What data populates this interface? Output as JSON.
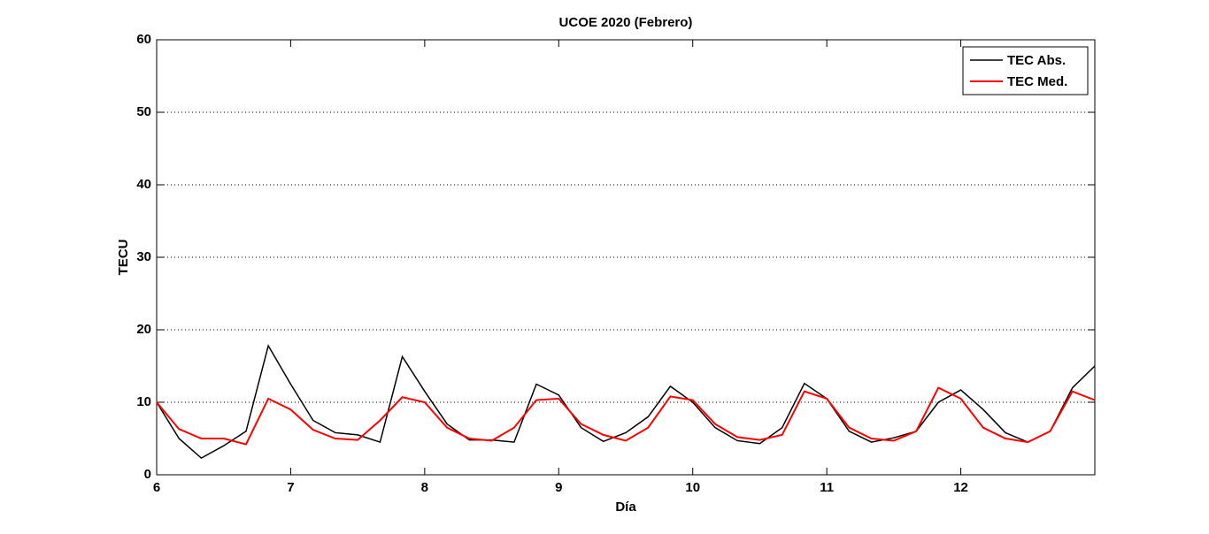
{
  "chart_data": {
    "type": "line",
    "title": "UCOE 2020 (Febrero)",
    "x_label": "Día",
    "y_label": "TECU",
    "x": [
      6,
      6.167,
      6.333,
      6.5,
      6.667,
      6.833,
      7,
      7.167,
      7.333,
      7.5,
      7.667,
      7.833,
      8,
      8.167,
      8.333,
      8.5,
      8.667,
      8.833,
      9,
      9.167,
      9.333,
      9.5,
      9.667,
      9.833,
      10,
      10.167,
      10.333,
      10.5,
      10.667,
      10.833,
      11,
      11.167,
      11.333,
      11.5,
      11.667,
      11.833,
      12,
      12.167,
      12.333,
      12.5,
      12.667,
      12.833,
      13
    ],
    "series": [
      {
        "name": "TEC Abs.",
        "color": "#000000",
        "values": [
          10,
          5,
          2.3,
          4,
          6,
          17.8,
          12.5,
          7.5,
          5.8,
          5.5,
          4.5,
          16.3,
          11.5,
          7,
          4.8,
          4.8,
          4.5,
          12.5,
          11,
          6.5,
          4.6,
          5.8,
          8,
          12.2,
          10,
          6.5,
          4.7,
          4.3,
          6.5,
          12.6,
          10.5,
          6,
          4.5,
          5.1,
          6,
          10,
          11.7,
          9,
          5.8,
          4.5,
          6,
          12,
          15
        ]
      },
      {
        "name": "TEC Med.",
        "color": "#ff0000",
        "values": [
          10,
          6.3,
          5,
          5,
          4.2,
          10.5,
          9,
          6.2,
          5,
          4.8,
          7.5,
          10.7,
          10,
          6.5,
          5,
          4.7,
          6.5,
          10.3,
          10.5,
          7,
          5.5,
          4.7,
          6.5,
          10.8,
          10.3,
          7,
          5.2,
          4.8,
          5.5,
          11.5,
          10.5,
          6.5,
          5,
          4.7,
          6,
          12,
          10.5,
          6.5,
          5,
          4.5,
          6,
          11.5,
          10.3
        ]
      }
    ],
    "xlim": [
      6,
      13
    ],
    "xticks": [
      6,
      7,
      8,
      9,
      10,
      11,
      12
    ],
    "ylim": [
      0,
      60
    ],
    "yticks": [
      0,
      10,
      20,
      30,
      40,
      50,
      60
    ],
    "grid": true,
    "legend": "upper right"
  }
}
